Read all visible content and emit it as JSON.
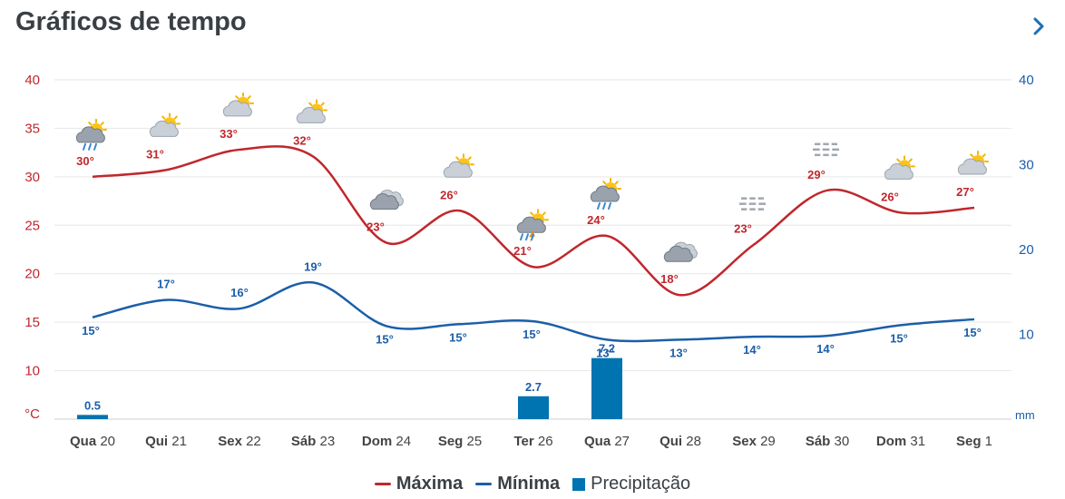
{
  "header": {
    "title": "Gráficos de tempo",
    "next_icon": "chevron-right-icon"
  },
  "colors": {
    "max": "#c0272d",
    "min": "#1b5ea9",
    "precip": "#0073b1",
    "axis_left": "#c0272d",
    "axis_right": "#1b5ea9",
    "grid": "#e6e6e6",
    "tick": "#444444"
  },
  "chart_data": {
    "type": "line",
    "title": "Gráficos de tempo",
    "x_labels": [
      {
        "wd": "Qua",
        "d": "20"
      },
      {
        "wd": "Qui",
        "d": "21"
      },
      {
        "wd": "Sex",
        "d": "22"
      },
      {
        "wd": "Sáb",
        "d": "23"
      },
      {
        "wd": "Dom",
        "d": "24"
      },
      {
        "wd": "Seg",
        "d": "25"
      },
      {
        "wd": "Ter",
        "d": "26"
      },
      {
        "wd": "Qua",
        "d": "27"
      },
      {
        "wd": "Qui",
        "d": "28"
      },
      {
        "wd": "Sex",
        "d": "29"
      },
      {
        "wd": "Sáb",
        "d": "30"
      },
      {
        "wd": "Dom",
        "d": "31"
      },
      {
        "wd": "Seg",
        "d": "1"
      }
    ],
    "left_axis": {
      "unit": "°C",
      "ticks": [
        10,
        15,
        20,
        25,
        30,
        35,
        40
      ],
      "ylim": [
        5,
        40
      ]
    },
    "right_axis": {
      "unit": "mm",
      "ticks": [
        10,
        20,
        30,
        40
      ],
      "ylim": [
        0,
        40
      ]
    },
    "series": [
      {
        "name": "Máxima",
        "axis": "left",
        "values": [
          30,
          30.7,
          32.8,
          32.1,
          23.2,
          26.5,
          20.7,
          23.9,
          17.8,
          23,
          28.6,
          26.3,
          26.8
        ],
        "labels": [
          "30°",
          "31°",
          "33°",
          "32°",
          "23°",
          "26°",
          "21°",
          "24°",
          "18°",
          "23°",
          "29°",
          "26°",
          "27°"
        ]
      },
      {
        "name": "Mínima",
        "axis": "left",
        "values": [
          15.5,
          17.3,
          16.4,
          19.1,
          14.6,
          14.8,
          15.1,
          13.2,
          13.2,
          13.5,
          13.6,
          14.7,
          15.3
        ],
        "labels": [
          "15°",
          "17°",
          "16°",
          "19°",
          "15°",
          "15°",
          "15°",
          "13°",
          "13°",
          "14°",
          "14°",
          "15°",
          "15°"
        ]
      },
      {
        "name": "Precipitação",
        "axis": "right",
        "type": "bar",
        "values": [
          0.5,
          0,
          0,
          0,
          0,
          0,
          2.7,
          7.2,
          0,
          0,
          0,
          0,
          0
        ],
        "labels": [
          "0.5",
          "",
          "",
          "",
          "",
          "",
          "2.7",
          "7.2",
          "",
          "",
          "",
          "",
          ""
        ]
      }
    ],
    "weather_icons": [
      "sun-cloud-rain-icon",
      "sun-cloud-icon",
      "sun-cloud-icon",
      "sun-cloud-icon",
      "cloud-icon",
      "sun-cloud-icon",
      "sun-cloud-storm-icon",
      "sun-cloud-rain-icon",
      "cloud-icon",
      "fog-icon",
      "fog-icon",
      "sun-cloud-icon",
      "sun-cloud-icon"
    ]
  },
  "legend": {
    "max_label": "Máxima",
    "min_label": "Mínima",
    "precip_label": "Precipitação"
  }
}
